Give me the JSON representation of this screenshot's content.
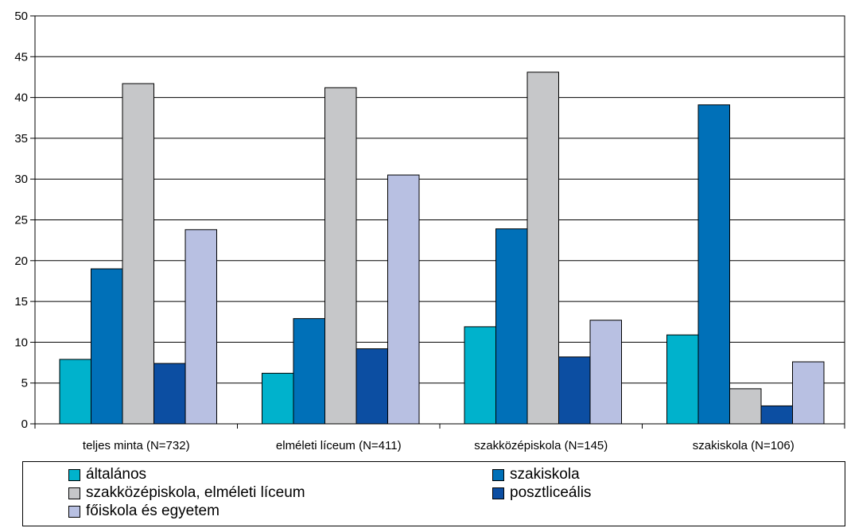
{
  "chart_data": {
    "type": "bar",
    "categories": [
      "teljes minta (N=732)",
      "elméleti líceum (N=411)",
      "szakközépiskola (N=145)",
      "szakiskola (N=106)"
    ],
    "series": [
      {
        "name": "általános",
        "color": "#00b2cc",
        "values": [
          7.9,
          6.2,
          11.9,
          10.9
        ]
      },
      {
        "name": "szakiskola",
        "color": "#0070b8",
        "values": [
          19.0,
          12.9,
          23.9,
          39.1
        ]
      },
      {
        "name": "szakközépiskola, elméleti líceum",
        "color": "#c6c7c9",
        "values": [
          41.7,
          41.2,
          43.1,
          4.3
        ]
      },
      {
        "name": "posztliceális",
        "color": "#0c4ea2",
        "values": [
          7.4,
          9.2,
          8.2,
          2.2
        ]
      },
      {
        "name": "főiskola és egyetem",
        "color": "#b8c0e2",
        "values": [
          23.8,
          30.5,
          12.7,
          7.6
        ]
      }
    ],
    "ylim": [
      0,
      50
    ],
    "yticks": [
      0,
      5,
      10,
      15,
      20,
      25,
      30,
      35,
      40,
      45,
      50
    ],
    "grid": true,
    "legend_position": "bottom"
  }
}
